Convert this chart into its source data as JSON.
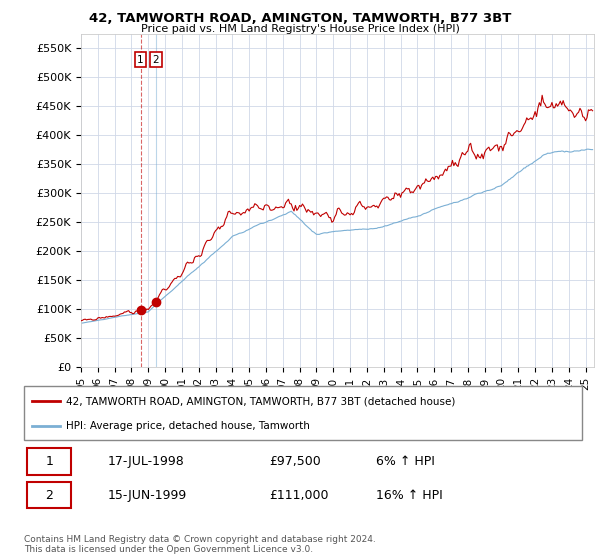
{
  "title": "42, TAMWORTH ROAD, AMINGTON, TAMWORTH, B77 3BT",
  "subtitle": "Price paid vs. HM Land Registry's House Price Index (HPI)",
  "ylabel_ticks": [
    "£0",
    "£50K",
    "£100K",
    "£150K",
    "£200K",
    "£250K",
    "£300K",
    "£350K",
    "£400K",
    "£450K",
    "£500K",
    "£550K"
  ],
  "ytick_values": [
    0,
    50000,
    100000,
    150000,
    200000,
    250000,
    300000,
    350000,
    400000,
    450000,
    500000,
    550000
  ],
  "ylim": [
    0,
    575000
  ],
  "xlim_start": 1995.0,
  "xlim_end": 2025.5,
  "hpi_color": "#7bafd4",
  "price_color": "#c00000",
  "sale1_date": 1998.54,
  "sale1_price": 97500,
  "sale2_date": 1999.46,
  "sale2_price": 111000,
  "legend_line1": "42, TAMWORTH ROAD, AMINGTON, TAMWORTH, B77 3BT (detached house)",
  "legend_line2": "HPI: Average price, detached house, Tamworth",
  "footnote": "Contains HM Land Registry data © Crown copyright and database right 2024.\nThis data is licensed under the Open Government Licence v3.0.",
  "background_color": "#ffffff",
  "grid_color": "#d0d8e8"
}
